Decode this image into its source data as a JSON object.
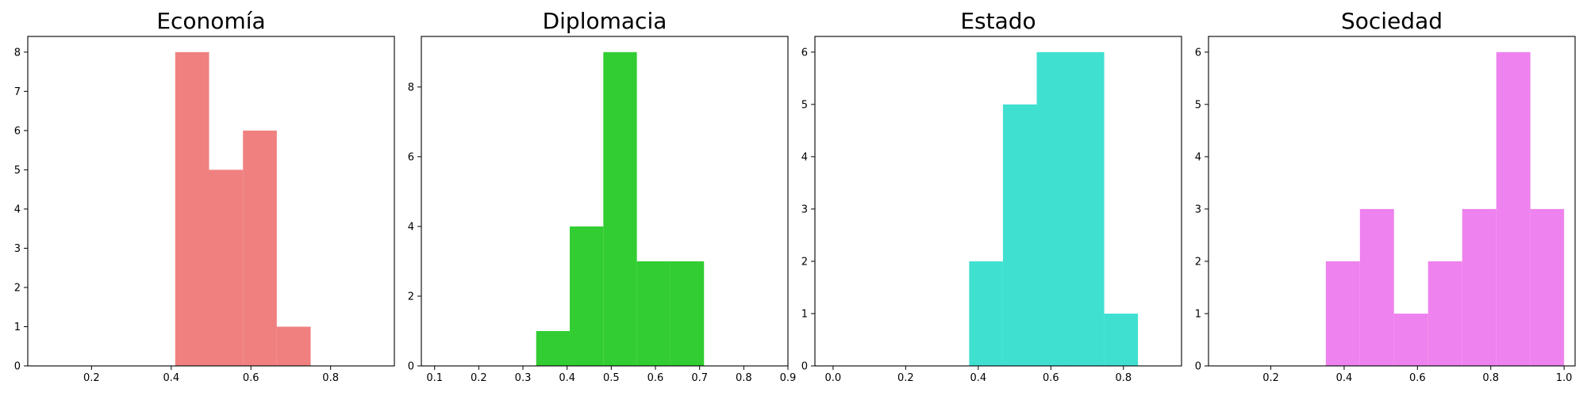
{
  "chart_data": [
    {
      "type": "bar",
      "title": "Economía",
      "color": "#f08080",
      "xlim": [
        0.04,
        0.96
      ],
      "ylim": [
        0,
        8.4
      ],
      "xticks": [
        "0.2",
        "0.4",
        "0.6",
        "0.8"
      ],
      "yticks": [
        "0",
        "1",
        "2",
        "3",
        "4",
        "5",
        "6",
        "7",
        "8"
      ],
      "bin_edges": [
        0.41,
        0.495,
        0.58,
        0.665,
        0.75
      ],
      "values": [
        8,
        5,
        6,
        1
      ]
    },
    {
      "type": "bar",
      "title": "Diplomacia",
      "color": "#32cd32",
      "xlim": [
        0.07,
        0.9
      ],
      "ylim": [
        0,
        9.45
      ],
      "xticks": [
        "0.1",
        "0.2",
        "0.3",
        "0.4",
        "0.5",
        "0.6",
        "0.7",
        "0.8",
        "0.9"
      ],
      "yticks": [
        "0",
        "2",
        "4",
        "6",
        "8"
      ],
      "bin_edges": [
        0.33,
        0.406,
        0.482,
        0.558,
        0.634,
        0.71
      ],
      "values": [
        1,
        4,
        9,
        3,
        3
      ]
    },
    {
      "type": "bar",
      "title": "Estado",
      "color": "#40e0d0",
      "xlim": [
        -0.05,
        0.96
      ],
      "ylim": [
        0,
        6.3
      ],
      "xticks": [
        "0.0",
        "0.2",
        "0.4",
        "0.6",
        "0.8"
      ],
      "yticks": [
        "0",
        "1",
        "2",
        "3",
        "4",
        "5",
        "6"
      ],
      "bin_edges": [
        0.375,
        0.468,
        0.561,
        0.654,
        0.747,
        0.84
      ],
      "values": [
        2,
        5,
        6,
        6,
        1
      ]
    },
    {
      "type": "bar",
      "title": "Sociedad",
      "color": "#ee82ee",
      "xlim": [
        0.03,
        1.03
      ],
      "ylim": [
        0,
        6.3
      ],
      "xticks": [
        "0.2",
        "0.4",
        "0.6",
        "0.8",
        "1.0"
      ],
      "yticks": [
        "0",
        "1",
        "2",
        "3",
        "4",
        "5",
        "6"
      ],
      "bin_edges": [
        0.35,
        0.443,
        0.536,
        0.629,
        0.722,
        0.815,
        0.908,
        1.0
      ],
      "values": [
        2,
        3,
        1,
        2,
        3,
        6,
        3
      ]
    }
  ]
}
